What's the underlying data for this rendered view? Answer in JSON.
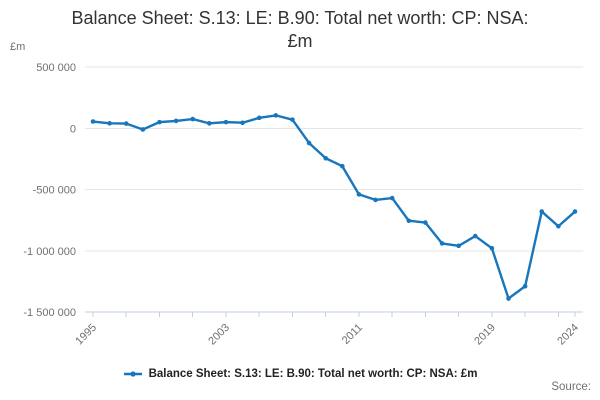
{
  "title": {
    "line1": "Balance Sheet: S.13: LE: B.90: Total net worth: CP: NSA:",
    "line2": "£m"
  },
  "y_axis_unit": "£m",
  "source_label": "Source:",
  "legend": {
    "label": "Balance Sheet: S.13: LE: B.90: Total net worth: CP: NSA: £m"
  },
  "colors": {
    "line": "#1776bc",
    "grid": "#e6e6e6",
    "axis": "#c3cfdd",
    "tick_text": "#707070",
    "title_text": "#333333",
    "legend_text": "#222222"
  },
  "chart_data": {
    "type": "line",
    "title": "Balance Sheet: S.13: LE: B.90: Total net worth: CP: NSA: £m",
    "xlabel": "",
    "ylabel": "£m",
    "grid": true,
    "legend_position": "bottom",
    "marker": "circle",
    "x": [
      1995,
      1996,
      1997,
      1998,
      1999,
      2000,
      2001,
      2002,
      2003,
      2004,
      2005,
      2006,
      2007,
      2008,
      2009,
      2010,
      2011,
      2012,
      2013,
      2014,
      2015,
      2016,
      2017,
      2018,
      2019,
      2020,
      2021,
      2022,
      2023,
      2024
    ],
    "series": [
      {
        "name": "Balance Sheet: S.13: LE: B.90: Total net worth: CP: NSA: £m",
        "values": [
          55000,
          40000,
          38000,
          -10000,
          50000,
          60000,
          75000,
          40000,
          50000,
          45000,
          85000,
          105000,
          70000,
          -120000,
          -245000,
          -310000,
          -540000,
          -585000,
          -570000,
          -755000,
          -770000,
          -940000,
          -960000,
          -880000,
          -980000,
          -1390000,
          -1290000,
          -680000,
          -800000,
          -680000
        ]
      }
    ],
    "ylim": [
      -1500000,
      500000
    ],
    "yticks": [
      {
        "value": 500000,
        "label": "500 000"
      },
      {
        "value": 0,
        "label": "0"
      },
      {
        "value": -500000,
        "label": "-500 000"
      },
      {
        "value": -1000000,
        "label": "-1 000 000"
      },
      {
        "value": -1500000,
        "label": "-1 500 000"
      }
    ],
    "xtick_years": [
      1995,
      1997,
      1999,
      2001,
      2003,
      2005,
      2007,
      2009,
      2011,
      2013,
      2015,
      2017,
      2019,
      2021,
      2023,
      2024
    ],
    "xtick_labeled": [
      1995,
      2003,
      2011,
      2019,
      2024
    ]
  }
}
